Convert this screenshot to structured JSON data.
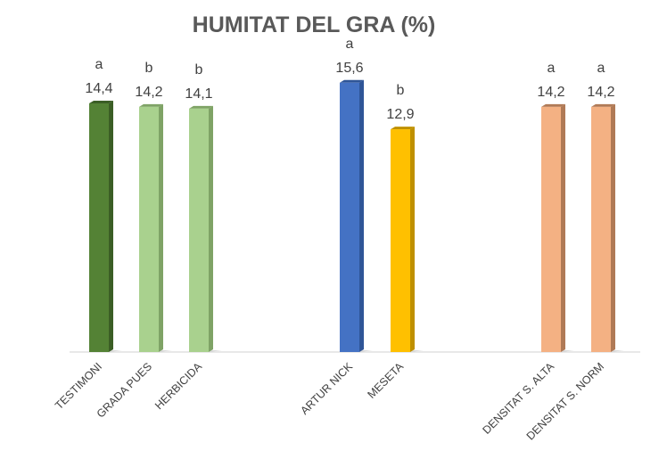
{
  "chart_data": {
    "type": "bar",
    "title": "HUMITAT DEL GRA (%)",
    "xlabel": "",
    "ylabel": "",
    "ylim": [
      0,
      16
    ],
    "grid": false,
    "legend": "none",
    "categories": [
      "TESTIMONI",
      "GRADA PUES",
      "HERBICIDA",
      "",
      "ARTUR NICK",
      "MESETA",
      "",
      "DENSITAT S. ALTA",
      "DENSITAT S. NORM"
    ],
    "values": [
      14.4,
      14.2,
      14.1,
      null,
      15.6,
      12.9,
      null,
      14.2,
      14.2
    ],
    "value_labels": [
      "14,4",
      "14,2",
      "14,1",
      "",
      "15,6",
      "12,9",
      "",
      "14,2",
      "14,2"
    ],
    "significance": [
      "a",
      "b",
      "b",
      "",
      "a",
      "b",
      "",
      "a",
      "a"
    ],
    "colors": [
      "#548235",
      "#a9d18e",
      "#a9d18e",
      "",
      "#4472c4",
      "#ffc000",
      "",
      "#f4b183",
      "#f4b183"
    ],
    "side_colors": [
      "#3b5e25",
      "#7fa366",
      "#7fa366",
      "",
      "#2f5597",
      "#bf9000",
      "",
      "#b07a56",
      "#b07a56"
    ]
  }
}
